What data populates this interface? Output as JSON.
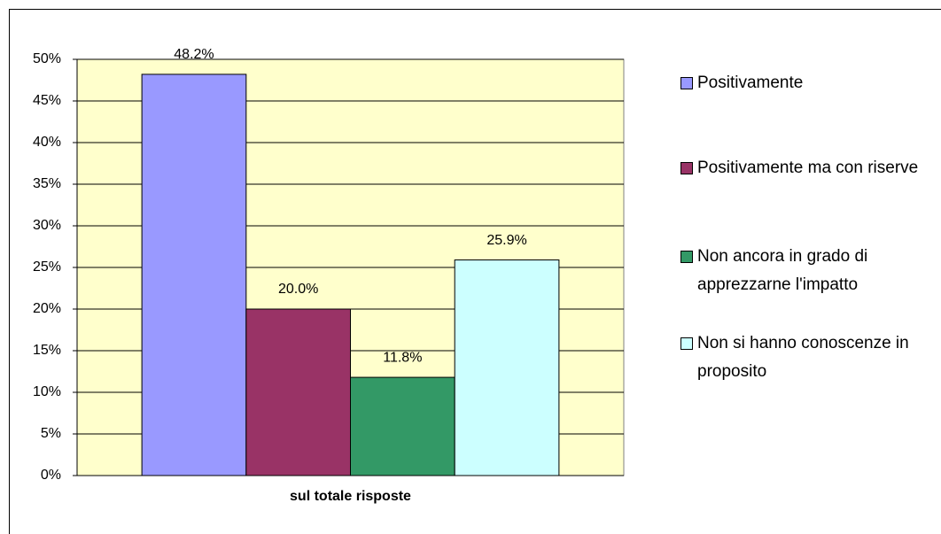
{
  "chart_data": {
    "type": "bar",
    "categories": [
      "sul totale risposte"
    ],
    "series": [
      {
        "name": "Positivamente",
        "color": "#9999ff",
        "values": [
          48.2
        ],
        "value_labels": [
          "48.2%"
        ]
      },
      {
        "name": "Positivamente ma con riserve",
        "color": "#993366",
        "values": [
          20.0
        ],
        "value_labels": [
          "20.0%"
        ]
      },
      {
        "name": "Non ancora in grado di apprezzarne l'impatto",
        "color": "#339966",
        "values": [
          11.8
        ],
        "value_labels": [
          "11.8%"
        ]
      },
      {
        "name": "Non si hanno conoscenze in proposito",
        "color": "#ccffff",
        "values": [
          25.9
        ],
        "value_labels": [
          "25.9%"
        ]
      }
    ],
    "ylim": [
      0,
      50
    ],
    "yticks": [
      {
        "value": 0,
        "label": "0%"
      },
      {
        "value": 5,
        "label": "5%"
      },
      {
        "value": 10,
        "label": "10%"
      },
      {
        "value": 15,
        "label": "15%"
      },
      {
        "value": 20,
        "label": "20%"
      },
      {
        "value": 25,
        "label": "25%"
      },
      {
        "value": 30,
        "label": "30%"
      },
      {
        "value": 35,
        "label": "35%"
      },
      {
        "value": 40,
        "label": "40%"
      },
      {
        "value": 45,
        "label": "45%"
      },
      {
        "value": 50,
        "label": "50%"
      }
    ],
    "grid": true,
    "plot_background": "#ffffcc",
    "legend": "right"
  }
}
